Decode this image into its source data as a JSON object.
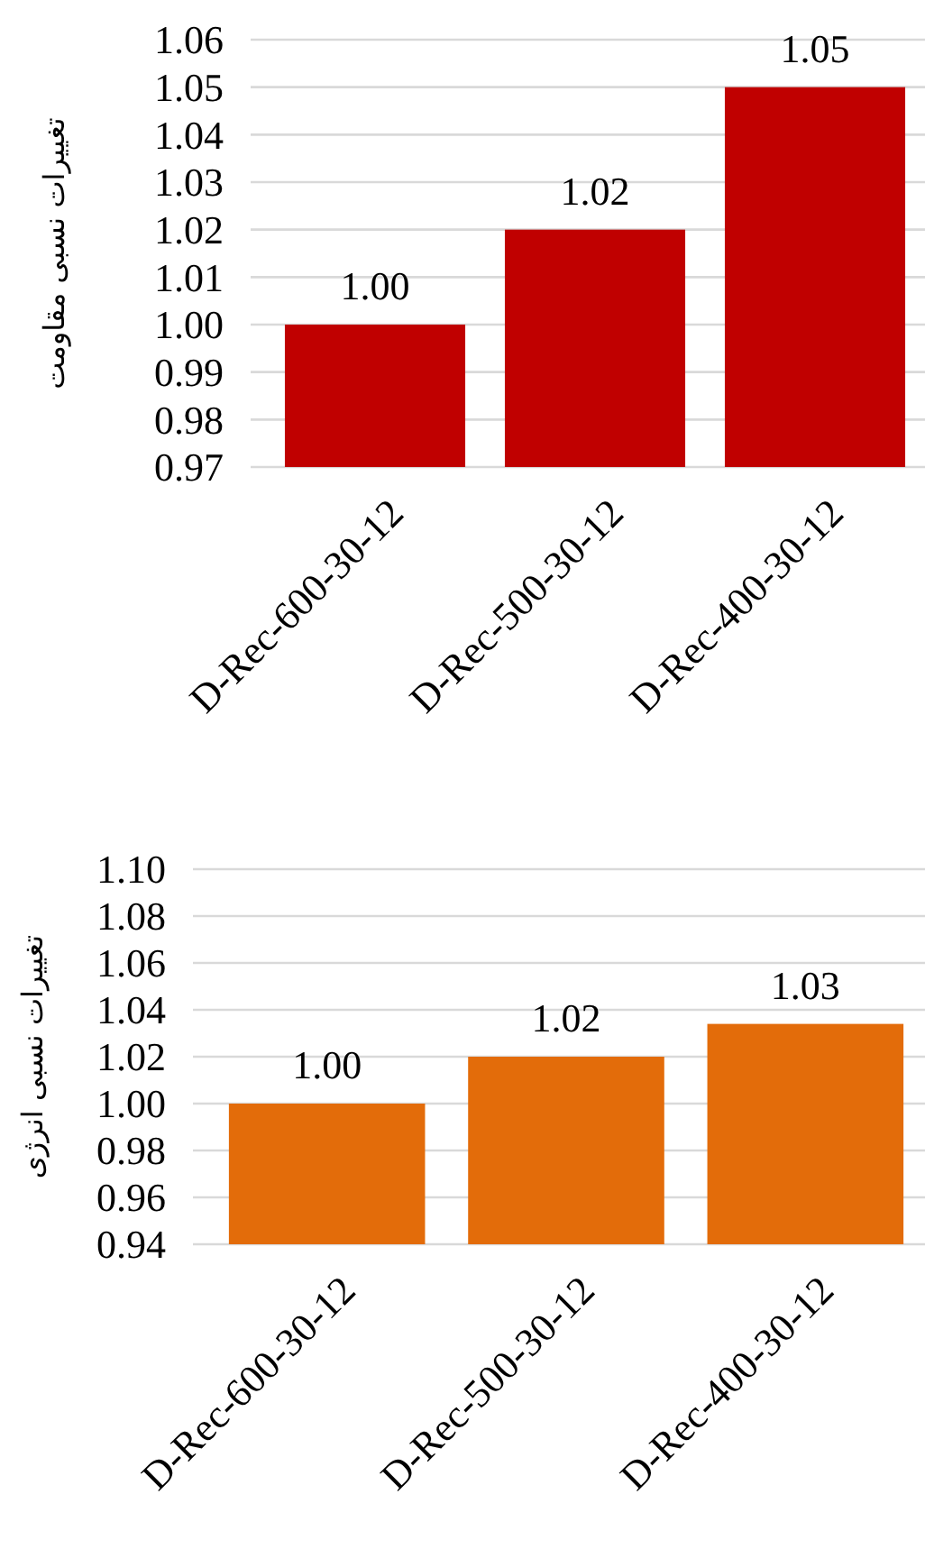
{
  "chart_data": [
    {
      "type": "bar",
      "ylabel": "تغییرات نسبی مقاومت",
      "categories": [
        "D-Rec-600-30-12",
        "D-Rec-500-30-12",
        "D-Rec-400-30-12"
      ],
      "values": [
        1.0,
        1.02,
        1.05
      ],
      "value_labels": [
        "1.00",
        "1.02",
        "1.05"
      ],
      "color": "#c00000",
      "ylim": [
        0.97,
        1.06
      ],
      "yticks": [
        {
          "value": 0.97,
          "label": "0.97"
        },
        {
          "value": 0.98,
          "label": "0.98"
        },
        {
          "value": 0.99,
          "label": "0.99"
        },
        {
          "value": 1.0,
          "label": "1.00"
        },
        {
          "value": 1.01,
          "label": "1.01"
        },
        {
          "value": 1.02,
          "label": "1.02"
        },
        {
          "value": 1.03,
          "label": "1.03"
        },
        {
          "value": 1.04,
          "label": "1.04"
        },
        {
          "value": 1.05,
          "label": "1.05"
        },
        {
          "value": 1.06,
          "label": "1.06"
        }
      ],
      "grid": "y"
    },
    {
      "type": "bar",
      "ylabel": "تغییرات نسبی انرژی",
      "categories": [
        "D-Rec-600-30-12",
        "D-Rec-500-30-12",
        "D-Rec-400-30-12"
      ],
      "values": [
        1.0,
        1.02,
        1.034
      ],
      "value_labels": [
        "1.00",
        "1.02",
        "1.03"
      ],
      "color": "#e36c0a",
      "ylim": [
        0.94,
        1.1
      ],
      "yticks": [
        {
          "value": 0.94,
          "label": "0.94"
        },
        {
          "value": 0.96,
          "label": "0.96"
        },
        {
          "value": 0.98,
          "label": "0.98"
        },
        {
          "value": 1.0,
          "label": "1.00"
        },
        {
          "value": 1.02,
          "label": "1.02"
        },
        {
          "value": 1.04,
          "label": "1.04"
        },
        {
          "value": 1.06,
          "label": "1.06"
        },
        {
          "value": 1.08,
          "label": "1.08"
        },
        {
          "value": 1.1,
          "label": "1.10"
        }
      ],
      "grid": "y"
    }
  ]
}
